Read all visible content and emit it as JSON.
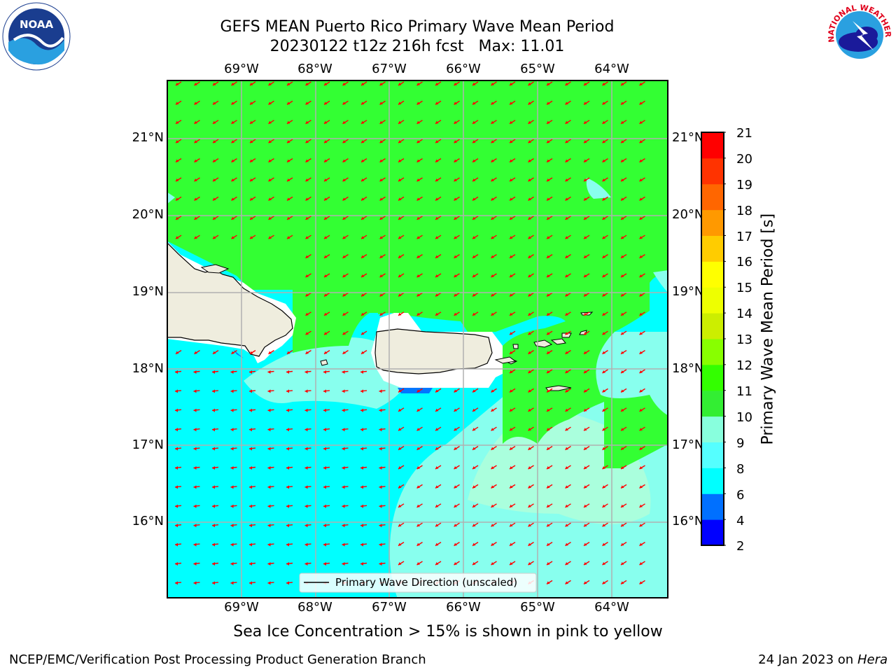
{
  "title": {
    "line1": "GEFS MEAN Puerto Rico Primary Wave Mean Period",
    "line2": "20230122 t12z 216h fcst   Max: 11.01"
  },
  "map": {
    "lon_ticks": [
      "69°W",
      "68°W",
      "67°W",
      "66°W",
      "65°W",
      "64°W"
    ],
    "lat_ticks": [
      "21°N",
      "20°N",
      "19°N",
      "18°N",
      "17°N",
      "16°N"
    ],
    "lon_range": [
      -70.0,
      -63.25
    ],
    "lat_range": [
      15.0,
      21.75
    ],
    "grid": true,
    "arrow_color": "#ff0000",
    "land_color": "#efedde",
    "legend": {
      "label": "Primary Wave Direction (unscaled)",
      "position": "bottom-center"
    }
  },
  "colorbar": {
    "title": "Primary Wave Mean Period [s]",
    "ticks": [
      "21",
      "20",
      "19",
      "18",
      "17",
      "16",
      "15",
      "14",
      "13",
      "12",
      "11",
      "10",
      "9",
      "8",
      "6",
      "4",
      "2"
    ],
    "colors": [
      "#0000ff",
      "#0070ff",
      "#00ffff",
      "#55ffff",
      "#88ffdd",
      "#33ee33",
      "#33ff00",
      "#88ff00",
      "#ccee00",
      "#eeff00",
      "#ffff00",
      "#ffcc00",
      "#ff9900",
      "#ff6600",
      "#ff3300",
      "#ff0000"
    ]
  },
  "note": "Sea Ice Concentration > 15% is shown in pink to yellow",
  "credits": {
    "left": "NCEP/EMC/Verification Post Processing Product Generation Branch",
    "date": "24 Jan 2023 on",
    "host": "Hera"
  },
  "logos": {
    "noaa_text": "NOAA",
    "nws_text": "NATIONAL WEATHER SERVICE"
  }
}
